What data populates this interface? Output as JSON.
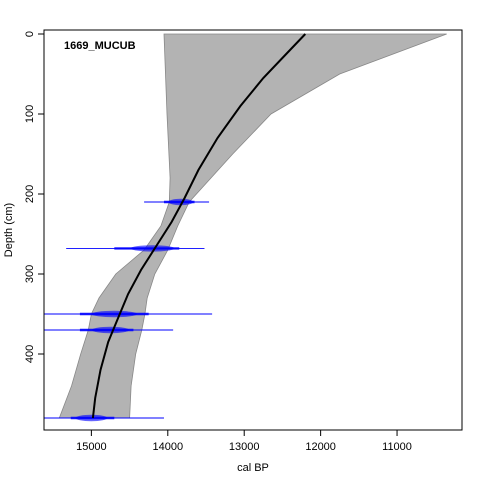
{
  "chart_data": {
    "type": "line",
    "title": "1669_MUCUB",
    "xlabel": "cal BP",
    "ylabel": "Depth (cm)",
    "x_axis_reversed": true,
    "y_axis_reversed": true,
    "xlim": [
      15620,
      10150
    ],
    "ylim": [
      -5,
      495
    ],
    "xticks": [
      15000,
      14000,
      13000,
      12000,
      11000
    ],
    "yticks": [
      0,
      100,
      200,
      300,
      400
    ],
    "xtick_labels": [
      "15000",
      "14000",
      "13000",
      "12000",
      "11000"
    ],
    "ytick_labels": [
      "0",
      "100",
      "200",
      "300",
      "400"
    ],
    "grid": false,
    "legend": "none",
    "colors": {
      "envelope": "#b3b3b3",
      "envelope_edge": "#888888",
      "median_line": "#000000",
      "dates": "#0000ff",
      "axis": "#000000"
    },
    "uncertainty_envelope": {
      "name": "",
      "older_bound": [
        {
          "depth": 0,
          "age": 14050
        },
        {
          "depth": 100,
          "age": 14010
        },
        {
          "depth": 180,
          "age": 13970
        },
        {
          "depth": 210,
          "age": 13980
        },
        {
          "depth": 240,
          "age": 14090
        },
        {
          "depth": 270,
          "age": 14310
        },
        {
          "depth": 300,
          "age": 14680
        },
        {
          "depth": 330,
          "age": 14900
        },
        {
          "depth": 350,
          "age": 15000
        },
        {
          "depth": 370,
          "age": 15040
        },
        {
          "depth": 400,
          "age": 15140
        },
        {
          "depth": 440,
          "age": 15260
        },
        {
          "depth": 480,
          "age": 15420
        }
      ],
      "younger_bound": [
        {
          "depth": 0,
          "age": 10350
        },
        {
          "depth": 50,
          "age": 11750
        },
        {
          "depth": 100,
          "age": 12650
        },
        {
          "depth": 150,
          "age": 13150
        },
        {
          "depth": 210,
          "age": 13720
        },
        {
          "depth": 240,
          "age": 13870
        },
        {
          "depth": 270,
          "age": 14000
        },
        {
          "depth": 300,
          "age": 14170
        },
        {
          "depth": 330,
          "age": 14270
        },
        {
          "depth": 350,
          "age": 14300
        },
        {
          "depth": 370,
          "age": 14340
        },
        {
          "depth": 400,
          "age": 14420
        },
        {
          "depth": 440,
          "age": 14480
        },
        {
          "depth": 480,
          "age": 14500
        }
      ]
    },
    "series": [
      {
        "name": "",
        "x": [
          12200,
          12450,
          12750,
          13050,
          13350,
          13600,
          13780,
          13950,
          14150,
          14350,
          14520,
          14650,
          14780,
          14880,
          14950,
          14980
        ],
        "y": [
          0,
          25,
          55,
          90,
          130,
          170,
          205,
          235,
          265,
          295,
          325,
          355,
          385,
          420,
          455,
          480
        ]
      }
    ],
    "dated_samples": [
      {
        "depth": 210,
        "age": 13830,
        "range": [
          14310,
          13460
        ],
        "core_range": [
          14050,
          13650
        ]
      },
      {
        "depth": 268,
        "age": 14200,
        "range": [
          15330,
          13520
        ],
        "core_range": [
          14700,
          13850
        ]
      },
      {
        "depth": 350,
        "age": 14700,
        "range": [
          15620,
          13420
        ],
        "core_range": [
          15150,
          14250
        ]
      },
      {
        "depth": 370,
        "age": 14750,
        "range": [
          15620,
          13930
        ],
        "core_range": [
          15150,
          14450
        ]
      },
      {
        "depth": 480,
        "age": 15000,
        "range": [
          15620,
          14050
        ],
        "core_range": [
          15270,
          14700
        ]
      }
    ]
  }
}
